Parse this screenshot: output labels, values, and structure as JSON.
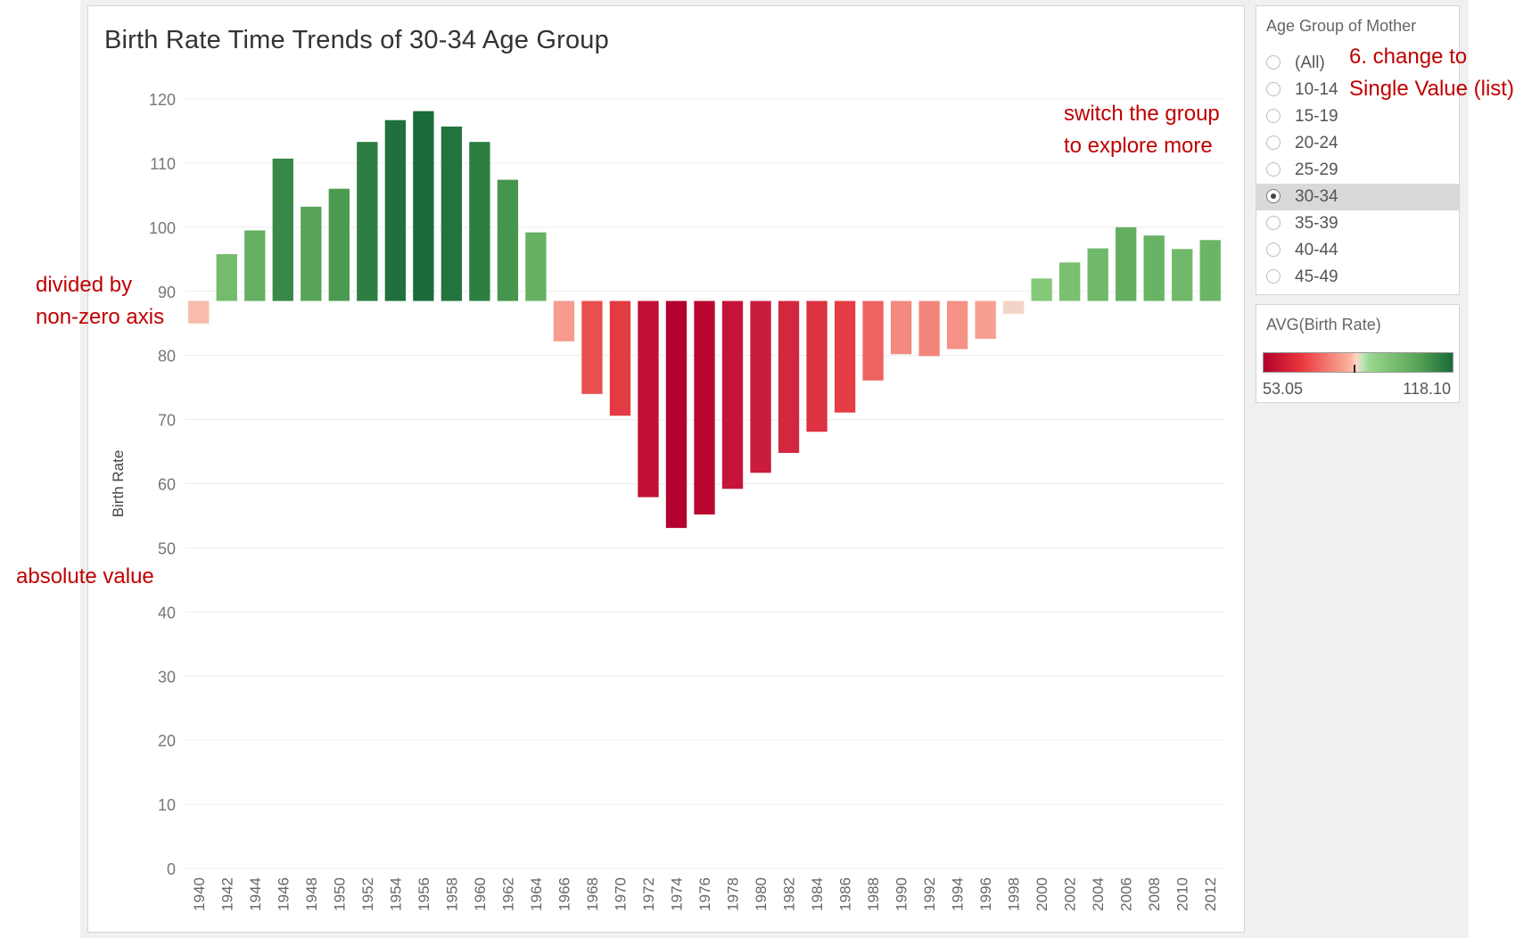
{
  "chart_data": {
    "type": "bar",
    "title": "Birth Rate Time Trends of 30-34 Age Group",
    "xlabel": "",
    "ylabel": "Birth Rate",
    "ylim": [
      0,
      120
    ],
    "yticks": [
      0,
      10,
      20,
      30,
      40,
      50,
      60,
      70,
      80,
      90,
      100,
      110,
      120
    ],
    "baseline": 88.5,
    "grid": true,
    "categories": [
      "1940",
      "1942",
      "1944",
      "1946",
      "1948",
      "1950",
      "1952",
      "1954",
      "1956",
      "1958",
      "1960",
      "1962",
      "1964",
      "1966",
      "1968",
      "1970",
      "1972",
      "1974",
      "1976",
      "1978",
      "1980",
      "1982",
      "1984",
      "1986",
      "1988",
      "1990",
      "1992",
      "1994",
      "1996",
      "1998",
      "2000",
      "2002",
      "2004",
      "2006",
      "2008",
      "2010",
      "2012"
    ],
    "values": [
      85.0,
      95.8,
      99.5,
      110.7,
      103.2,
      106.0,
      113.3,
      116.7,
      118.1,
      115.7,
      113.3,
      107.4,
      99.2,
      82.2,
      74.0,
      70.6,
      57.9,
      53.1,
      55.2,
      59.2,
      61.7,
      64.8,
      68.1,
      71.1,
      76.1,
      80.2,
      79.9,
      81.0,
      82.6,
      86.5,
      92.0,
      94.5,
      96.7,
      100.0,
      98.7,
      96.6,
      98.0
    ],
    "color_legend": {
      "title": "AVG(Birth Rate)",
      "min": "53.05",
      "max": "118.10",
      "low_color": "#b3002d",
      "mid_color": "#f2e6dc",
      "high_color": "#196b38"
    }
  },
  "filter": {
    "title": "Age Group of Mother",
    "options": [
      "(All)",
      "10-14",
      "15-19",
      "20-24",
      "25-29",
      "30-34",
      "35-39",
      "40-44",
      "45-49"
    ],
    "selected": "30-34"
  },
  "annotations": {
    "divided_line1": "divided by",
    "divided_line2": "non-zero axis",
    "absolute": "absolute value",
    "switch_line1": "switch the group",
    "switch_line2": "to explore more",
    "change_line1": "6. change to",
    "change_line2": "Single Value (list)"
  }
}
